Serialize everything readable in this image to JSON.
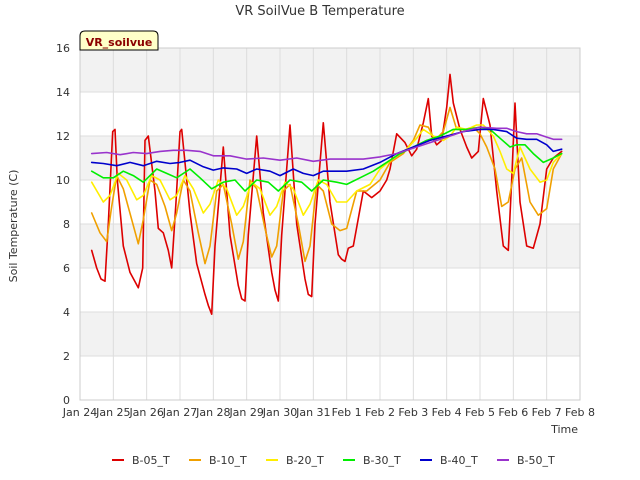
{
  "chart_data": {
    "type": "line",
    "title": "VR SoilVue B Temperature",
    "xlabel": "Time",
    "ylabel": "Soil Temperature (C)",
    "station_label": "VR_soilvue",
    "ylim": [
      0,
      16
    ],
    "yticks": [
      0,
      2,
      4,
      6,
      8,
      10,
      12,
      14,
      16
    ],
    "xlim": [
      0,
      15
    ],
    "xticks": [
      {
        "x": 0,
        "label": "Jan 24"
      },
      {
        "x": 1,
        "label": "Jan 25"
      },
      {
        "x": 2,
        "label": "Jan 26"
      },
      {
        "x": 3,
        "label": "Jan 27"
      },
      {
        "x": 4,
        "label": "Jan 28"
      },
      {
        "x": 5,
        "label": "Jan 29"
      },
      {
        "x": 6,
        "label": "Jan 30"
      },
      {
        "x": 7,
        "label": "Jan 31"
      },
      {
        "x": 8,
        "label": "Feb 1"
      },
      {
        "x": 9,
        "label": "Feb 2"
      },
      {
        "x": 10,
        "label": "Feb 3"
      },
      {
        "x": 11,
        "label": "Feb 4"
      },
      {
        "x": 12,
        "label": "Feb 5"
      },
      {
        "x": 13,
        "label": "Feb 6"
      },
      {
        "x": 14,
        "label": "Feb 7"
      },
      {
        "x": 15,
        "label": "Feb 8"
      }
    ],
    "grid": true,
    "legend_position": "bottom",
    "series": [
      {
        "name": "B-05_T",
        "color": "#dd0000",
        "x": [
          0.35,
          0.5,
          0.63,
          0.75,
          0.85,
          0.98,
          1.05,
          1.12,
          1.3,
          1.5,
          1.75,
          1.88,
          1.95,
          2.05,
          2.25,
          2.35,
          2.5,
          2.65,
          2.75,
          2.88,
          3.0,
          3.05,
          3.3,
          3.5,
          3.75,
          3.85,
          3.95,
          4.05,
          4.3,
          4.5,
          4.75,
          4.85,
          4.95,
          5.05,
          5.3,
          5.5,
          5.75,
          5.85,
          5.95,
          6.05,
          6.3,
          6.5,
          6.75,
          6.85,
          6.95,
          7.05,
          7.3,
          7.5,
          7.75,
          7.85,
          7.95,
          8.05,
          8.2,
          8.5,
          8.75,
          9.0,
          9.2,
          9.3,
          9.5,
          9.75,
          9.95,
          10.1,
          10.3,
          10.45,
          10.55,
          10.7,
          10.85,
          11.0,
          11.1,
          11.2,
          11.4,
          11.6,
          11.75,
          11.95,
          12.1,
          12.3,
          12.5,
          12.7,
          12.85,
          12.95,
          13.05,
          13.2,
          13.4,
          13.6,
          13.8,
          14.0,
          14.2,
          14.45
        ],
        "y": [
          6.8,
          6.0,
          5.5,
          5.4,
          8.0,
          12.2,
          12.3,
          10.0,
          7.0,
          5.8,
          5.1,
          6.0,
          11.8,
          12.0,
          9.5,
          7.8,
          7.6,
          6.8,
          6.0,
          9.0,
          12.2,
          12.3,
          8.5,
          6.2,
          4.8,
          4.3,
          3.9,
          7.0,
          11.5,
          7.5,
          5.2,
          4.6,
          4.5,
          7.5,
          12.0,
          8.5,
          5.8,
          5.0,
          4.5,
          7.5,
          12.5,
          8.0,
          5.5,
          4.8,
          4.7,
          8.0,
          12.6,
          9.0,
          6.6,
          6.4,
          6.3,
          6.9,
          7.0,
          9.5,
          9.2,
          9.5,
          10.0,
          10.5,
          12.1,
          11.7,
          11.1,
          11.4,
          12.6,
          13.7,
          12.0,
          11.6,
          11.8,
          13.3,
          14.8,
          13.5,
          12.3,
          11.5,
          11.0,
          11.3,
          13.7,
          12.5,
          9.5,
          7.0,
          6.8,
          10.0,
          13.5,
          9.0,
          7.0,
          6.9,
          8.0,
          10.5,
          11.0,
          11.3
        ]
      },
      {
        "name": "B-10_T",
        "color": "#f0a000",
        "x": [
          0.35,
          0.6,
          0.8,
          0.95,
          1.1,
          1.3,
          1.55,
          1.75,
          1.9,
          2.1,
          2.3,
          2.55,
          2.75,
          2.9,
          3.1,
          3.3,
          3.55,
          3.75,
          3.9,
          4.1,
          4.3,
          4.55,
          4.75,
          4.9,
          5.1,
          5.3,
          5.55,
          5.75,
          5.9,
          6.1,
          6.3,
          6.55,
          6.75,
          6.9,
          7.1,
          7.3,
          7.55,
          7.8,
          8.0,
          8.3,
          8.6,
          9.0,
          9.3,
          9.7,
          10.0,
          10.2,
          10.45,
          10.65,
          10.9,
          11.1,
          11.3,
          11.55,
          11.8,
          12.0,
          12.2,
          12.45,
          12.65,
          12.85,
          13.05,
          13.25,
          13.5,
          13.75,
          14.0,
          14.2,
          14.45
        ],
        "y": [
          8.5,
          7.6,
          7.2,
          8.8,
          10.2,
          9.6,
          8.2,
          7.1,
          8.2,
          10.0,
          9.8,
          8.8,
          7.7,
          8.5,
          10.0,
          9.5,
          7.6,
          6.2,
          7.0,
          9.5,
          9.8,
          8.0,
          6.4,
          7.2,
          10.0,
          9.6,
          7.8,
          6.5,
          7.0,
          9.5,
          9.8,
          8.0,
          6.3,
          7.0,
          9.8,
          9.5,
          8.0,
          7.7,
          7.8,
          9.5,
          9.5,
          10.0,
          10.8,
          11.2,
          11.8,
          12.5,
          12.4,
          11.8,
          12.2,
          13.3,
          12.3,
          12.3,
          12.4,
          12.1,
          11.5,
          10.5,
          8.8,
          9.0,
          10.5,
          11.0,
          9.0,
          8.4,
          8.7,
          10.5,
          11.2
        ]
      },
      {
        "name": "B-20_T",
        "color": "#ffee00",
        "x": [
          0.35,
          0.7,
          0.9,
          1.15,
          1.4,
          1.7,
          1.9,
          2.15,
          2.4,
          2.7,
          2.9,
          3.15,
          3.4,
          3.7,
          3.9,
          4.15,
          4.4,
          4.7,
          4.9,
          5.15,
          5.4,
          5.7,
          5.9,
          6.15,
          6.4,
          6.7,
          6.9,
          7.15,
          7.4,
          7.7,
          8.0,
          8.3,
          8.7,
          9.0,
          9.4,
          9.8,
          10.1,
          10.3,
          10.6,
          10.9,
          11.1,
          11.3,
          11.6,
          11.9,
          12.1,
          12.4,
          12.6,
          12.8,
          13.0,
          13.2,
          13.5,
          13.8,
          14.0,
          14.2,
          14.45
        ],
        "y": [
          9.9,
          9.0,
          9.3,
          10.3,
          10.0,
          9.1,
          9.3,
          10.2,
          10.0,
          9.1,
          9.3,
          10.2,
          9.6,
          8.5,
          8.9,
          10.0,
          9.6,
          8.4,
          8.8,
          9.9,
          9.6,
          8.4,
          8.8,
          9.9,
          9.6,
          8.4,
          8.9,
          10.0,
          9.8,
          9.0,
          9.0,
          9.5,
          9.8,
          10.5,
          11.0,
          11.4,
          11.9,
          12.3,
          12.0,
          11.8,
          12.0,
          12.4,
          12.3,
          12.5,
          12.5,
          12.0,
          11.3,
          10.5,
          10.3,
          11.5,
          10.5,
          9.9,
          10.0,
          10.8,
          11.2
        ]
      },
      {
        "name": "B-30_T",
        "color": "#00ee00",
        "x": [
          0.35,
          0.7,
          1.0,
          1.3,
          1.6,
          1.9,
          2.3,
          2.6,
          2.9,
          3.3,
          3.6,
          3.95,
          4.3,
          4.65,
          4.95,
          5.3,
          5.65,
          5.95,
          6.3,
          6.65,
          6.95,
          7.3,
          7.7,
          8.0,
          8.4,
          8.8,
          9.2,
          9.6,
          10.0,
          10.4,
          10.8,
          11.2,
          11.6,
          12.0,
          12.3,
          12.6,
          12.9,
          13.1,
          13.35,
          13.6,
          13.9,
          14.2,
          14.45
        ],
        "y": [
          10.4,
          10.1,
          10.1,
          10.4,
          10.2,
          9.9,
          10.5,
          10.3,
          10.1,
          10.5,
          10.1,
          9.6,
          9.9,
          10.0,
          9.5,
          10.0,
          9.9,
          9.5,
          10.0,
          9.9,
          9.5,
          10.0,
          9.9,
          9.8,
          10.1,
          10.4,
          10.8,
          11.2,
          11.5,
          11.8,
          12.0,
          12.3,
          12.3,
          12.4,
          12.3,
          11.9,
          11.5,
          11.6,
          11.6,
          11.2,
          10.8,
          11.0,
          11.2
        ]
      },
      {
        "name": "B-40_T",
        "color": "#0000cc",
        "x": [
          0.35,
          0.7,
          1.1,
          1.5,
          1.9,
          2.3,
          2.7,
          3.0,
          3.3,
          3.7,
          4.0,
          4.3,
          4.7,
          5.0,
          5.3,
          5.7,
          6.0,
          6.4,
          6.7,
          7.0,
          7.3,
          7.7,
          8.0,
          8.5,
          9.0,
          9.5,
          10.0,
          10.5,
          11.0,
          11.5,
          12.0,
          12.4,
          12.8,
          13.1,
          13.4,
          13.7,
          14.0,
          14.2,
          14.45
        ],
        "y": [
          10.8,
          10.75,
          10.65,
          10.8,
          10.65,
          10.85,
          10.75,
          10.8,
          10.9,
          10.6,
          10.45,
          10.55,
          10.5,
          10.3,
          10.5,
          10.4,
          10.2,
          10.5,
          10.3,
          10.2,
          10.4,
          10.4,
          10.4,
          10.5,
          10.8,
          11.2,
          11.5,
          11.8,
          12.0,
          12.2,
          12.3,
          12.3,
          12.2,
          11.9,
          11.85,
          11.85,
          11.6,
          11.3,
          11.4
        ]
      },
      {
        "name": "B-50_T",
        "color": "#9933cc",
        "x": [
          0.35,
          0.8,
          1.2,
          1.6,
          2.0,
          2.4,
          2.8,
          3.2,
          3.6,
          4.0,
          4.5,
          5.0,
          5.5,
          6.0,
          6.5,
          7.0,
          7.5,
          8.0,
          8.5,
          9.0,
          9.5,
          10.0,
          10.5,
          11.0,
          11.5,
          12.0,
          12.5,
          12.8,
          13.1,
          13.4,
          13.7,
          14.0,
          14.2,
          14.45
        ],
        "y": [
          11.2,
          11.25,
          11.15,
          11.25,
          11.2,
          11.3,
          11.35,
          11.35,
          11.3,
          11.1,
          11.1,
          10.95,
          11.0,
          10.9,
          11.0,
          10.85,
          10.95,
          10.95,
          10.95,
          11.05,
          11.2,
          11.45,
          11.7,
          11.95,
          12.2,
          12.4,
          12.35,
          12.35,
          12.2,
          12.1,
          12.1,
          11.95,
          11.85,
          11.85
        ]
      }
    ]
  }
}
